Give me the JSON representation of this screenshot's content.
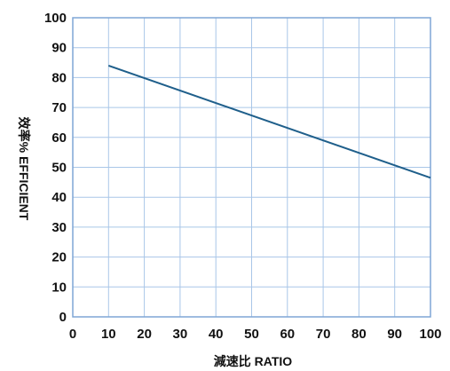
{
  "chart_data": {
    "type": "line",
    "xlabel": "減速比 RATIO",
    "ylabel": "效率% EFFICIENT",
    "xlim": [
      0,
      100
    ],
    "ylim": [
      0,
      100
    ],
    "x_ticks": [
      "0",
      "10",
      "20",
      "30",
      "40",
      "50",
      "60",
      "70",
      "80",
      "90",
      "100"
    ],
    "y_ticks": [
      "0",
      "10",
      "20",
      "30",
      "40",
      "50",
      "60",
      "70",
      "80",
      "90",
      "100"
    ],
    "grid": true,
    "series": [
      {
        "x": [
          10,
          100
        ],
        "y": [
          84,
          46.5
        ]
      }
    ],
    "colors": {
      "line": "#1f5f8b",
      "grid": "#a9c6e8",
      "axis": "#7fa6d6"
    }
  }
}
